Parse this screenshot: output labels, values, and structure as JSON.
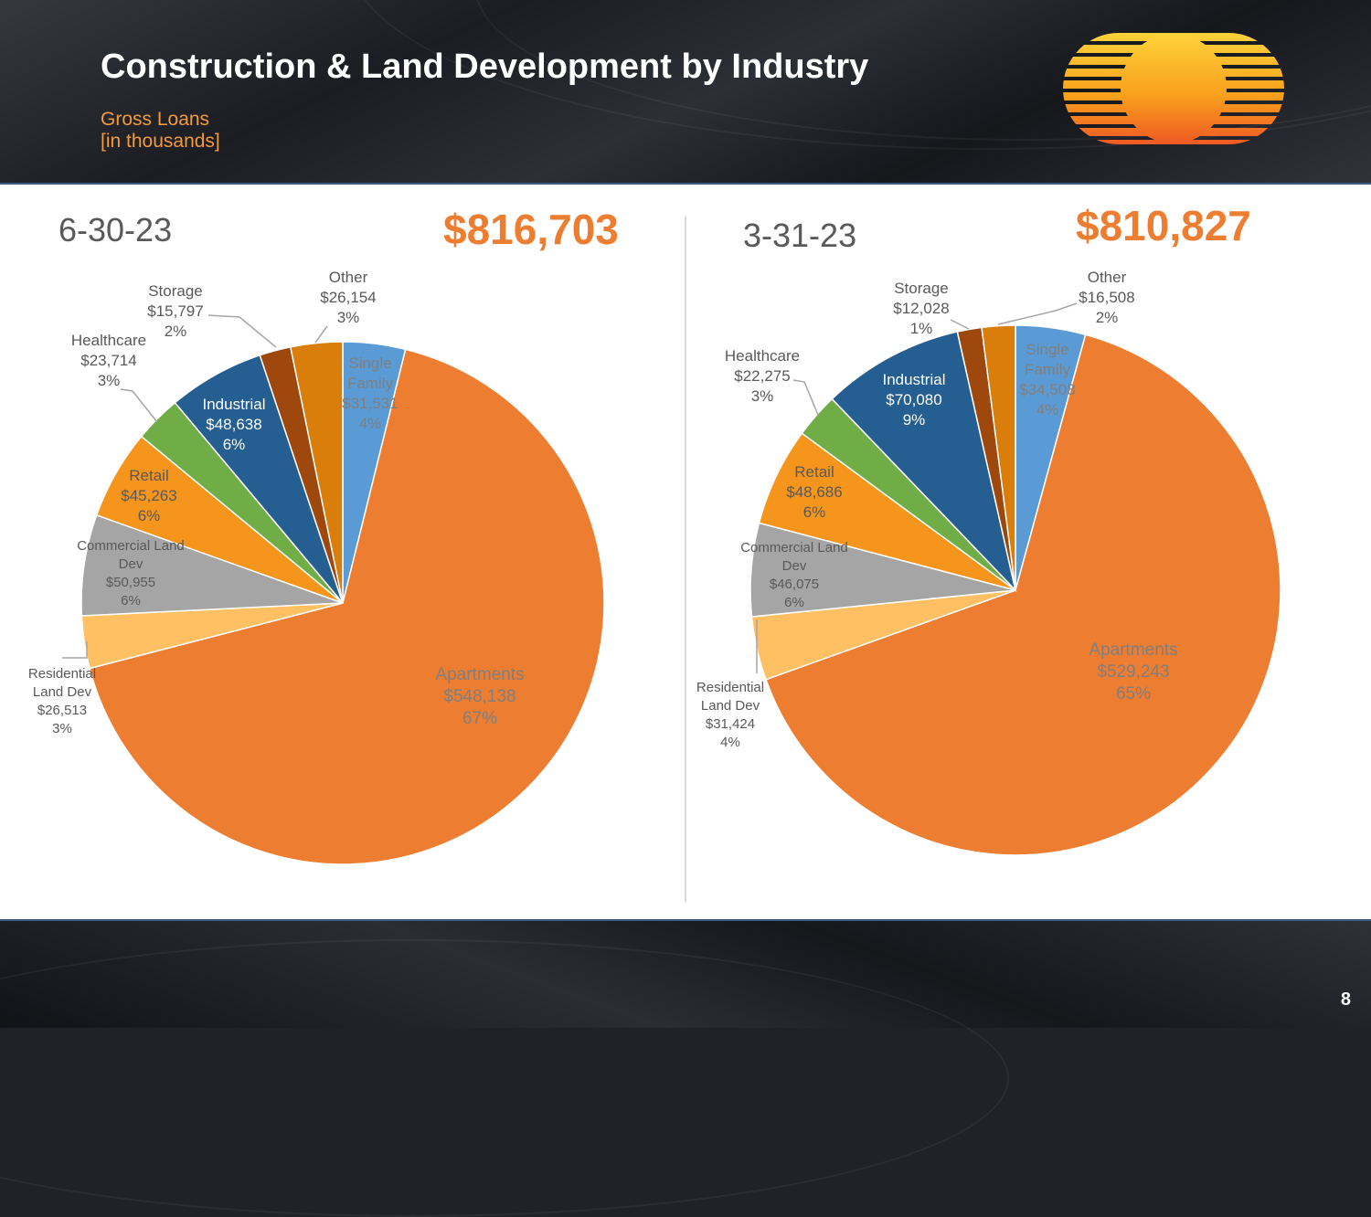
{
  "slide": {
    "title": "Construction & Land Development by Industry",
    "subtitle_line1": "Gross Loans",
    "subtitle_line2": "[in thousands]",
    "page_number": "8"
  },
  "colors": {
    "accent": "#ed7d31",
    "subtitle": "#f39a3c",
    "header_bg": "#24262b",
    "panel_border": "#3a5f86"
  },
  "chart_data": [
    {
      "type": "pie",
      "period": "6-30-23",
      "total": "$816,703",
      "slices": [
        {
          "name": "Single Family",
          "label_lines": [
            "Single",
            "Family",
            "$31,531",
            "4%"
          ],
          "value": 31531,
          "percent": "4%",
          "color": "#5b9bd5",
          "label_color": "#7f7f7f"
        },
        {
          "name": "Apartments",
          "label_lines": [
            "Apartments",
            "$548,138",
            "67%"
          ],
          "value": 548138,
          "percent": "67%",
          "color": "#ed7d31",
          "label_color": "#7f7f7f"
        },
        {
          "name": "Residential Land Dev",
          "label_lines": [
            "Residential",
            "Land Dev",
            "$26,513",
            "3%"
          ],
          "value": 26513,
          "percent": "3%",
          "color": "#ffc064",
          "label_color": "#595959"
        },
        {
          "name": "Commercial Land Dev",
          "label_lines": [
            "Commercial Land",
            "Dev",
            "$50,955",
            "6%"
          ],
          "value": 50955,
          "percent": "6%",
          "color": "#a5a5a5",
          "label_color": "#595959"
        },
        {
          "name": "Retail",
          "label_lines": [
            "Retail",
            "$45,263",
            "6%"
          ],
          "value": 45263,
          "percent": "6%",
          "color": "#f5951c",
          "label_color": "#595959"
        },
        {
          "name": "Healthcare",
          "label_lines": [
            "Healthcare",
            "$23,714",
            "3%"
          ],
          "value": 23714,
          "percent": "3%",
          "color": "#70ad47",
          "label_color": "#595959"
        },
        {
          "name": "Industrial",
          "label_lines": [
            "Industrial",
            "$48,638",
            "6%"
          ],
          "value": 48638,
          "percent": "6%",
          "color": "#255e91",
          "label_color": "#ffffff"
        },
        {
          "name": "Storage",
          "label_lines": [
            "Storage",
            "$15,797",
            "2%"
          ],
          "value": 15797,
          "percent": "2%",
          "color": "#9e480e",
          "label_color": "#595959"
        },
        {
          "name": "Other",
          "label_lines": [
            "Other",
            "$26,154",
            "3%"
          ],
          "value": 26154,
          "percent": "3%",
          "color": "#d97e0b",
          "label_color": "#595959"
        }
      ]
    },
    {
      "type": "pie",
      "period": "3-31-23",
      "total": "$810,827",
      "slices": [
        {
          "name": "Single Family",
          "label_lines": [
            "Single",
            "Family",
            "$34,508",
            "4%"
          ],
          "value": 34508,
          "percent": "4%",
          "color": "#5b9bd5",
          "label_color": "#7f7f7f"
        },
        {
          "name": "Apartments",
          "label_lines": [
            "Apartments",
            "$529,243",
            "65%"
          ],
          "value": 529243,
          "percent": "65%",
          "color": "#ed7d31",
          "label_color": "#7f7f7f"
        },
        {
          "name": "Residential Land Dev",
          "label_lines": [
            "Residential",
            "Land Dev",
            "$31,424",
            "4%"
          ],
          "value": 31424,
          "percent": "4%",
          "color": "#ffc064",
          "label_color": "#595959"
        },
        {
          "name": "Commercial Land Dev",
          "label_lines": [
            "Commercial Land",
            "Dev",
            "$46,075",
            "6%"
          ],
          "value": 46075,
          "percent": "6%",
          "color": "#a5a5a5",
          "label_color": "#595959"
        },
        {
          "name": "Retail",
          "label_lines": [
            "Retail",
            "$48,686",
            "6%"
          ],
          "value": 48686,
          "percent": "6%",
          "color": "#f5951c",
          "label_color": "#595959"
        },
        {
          "name": "Healthcare",
          "label_lines": [
            "Healthcare",
            "$22,275",
            "3%"
          ],
          "value": 22275,
          "percent": "3%",
          "color": "#70ad47",
          "label_color": "#595959"
        },
        {
          "name": "Industrial",
          "label_lines": [
            "Industrial",
            "$70,080",
            "9%"
          ],
          "value": 70080,
          "percent": "9%",
          "color": "#255e91",
          "label_color": "#ffffff"
        },
        {
          "name": "Storage",
          "label_lines": [
            "Storage",
            "$12,028",
            "1%"
          ],
          "value": 12028,
          "percent": "1%",
          "color": "#9e480e",
          "label_color": "#595959"
        },
        {
          "name": "Other",
          "label_lines": [
            "Other",
            "$16,508",
            "2%"
          ],
          "value": 16508,
          "percent": "2%",
          "color": "#d97e0b",
          "label_color": "#595959"
        }
      ]
    }
  ]
}
